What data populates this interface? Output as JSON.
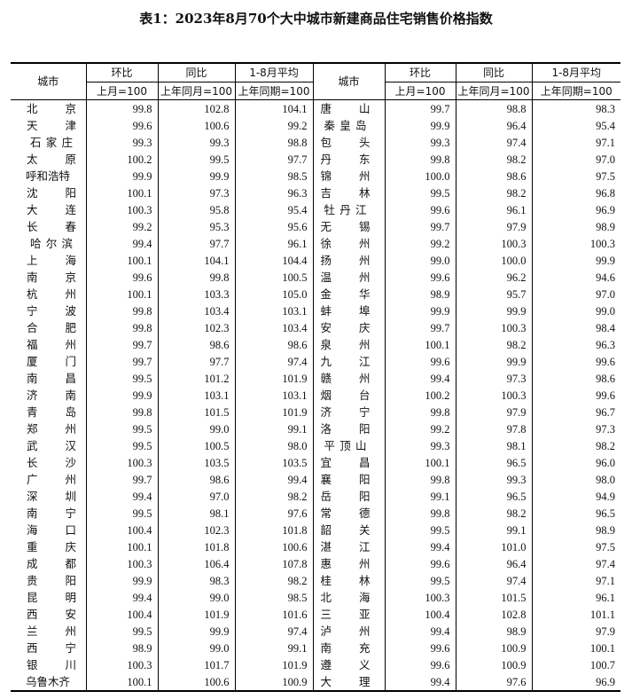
{
  "title": "表1：2023年8月70个大中城市新建商品住宅销售价格指数",
  "header": {
    "city": "城市",
    "mom": "环比",
    "yoy": "同比",
    "avg": "1-8月平均",
    "mom_base": "上月=100",
    "yoy_base": "上年同月=100",
    "avg_base": "上年同期=100"
  },
  "left_rows": [
    [
      "北京",
      "99.8",
      "102.8",
      "104.1"
    ],
    [
      "天津",
      "99.6",
      "100.6",
      "99.2"
    ],
    [
      "石家庄",
      "99.3",
      "99.3",
      "98.8"
    ],
    [
      "太原",
      "100.2",
      "99.5",
      "97.7"
    ],
    [
      "呼和浩特",
      "99.9",
      "99.9",
      "98.5"
    ],
    [
      "沈阳",
      "100.1",
      "97.3",
      "96.3"
    ],
    [
      "大连",
      "100.3",
      "95.8",
      "95.4"
    ],
    [
      "长春",
      "99.2",
      "95.3",
      "95.6"
    ],
    [
      "哈尔滨",
      "99.4",
      "97.7",
      "96.1"
    ],
    [
      "上海",
      "100.1",
      "104.1",
      "104.4"
    ],
    [
      "南京",
      "99.6",
      "99.8",
      "100.5"
    ],
    [
      "杭州",
      "100.1",
      "103.3",
      "105.0"
    ],
    [
      "宁波",
      "99.8",
      "103.4",
      "103.1"
    ],
    [
      "合肥",
      "99.8",
      "102.3",
      "103.4"
    ],
    [
      "福州",
      "99.7",
      "98.6",
      "98.6"
    ],
    [
      "厦门",
      "99.7",
      "97.7",
      "97.4"
    ],
    [
      "南昌",
      "99.5",
      "101.2",
      "101.9"
    ],
    [
      "济南",
      "99.9",
      "103.1",
      "103.1"
    ],
    [
      "青岛",
      "99.8",
      "101.5",
      "101.9"
    ],
    [
      "郑州",
      "99.5",
      "99.0",
      "99.1"
    ],
    [
      "武汉",
      "99.5",
      "100.5",
      "98.0"
    ],
    [
      "长沙",
      "100.3",
      "103.5",
      "103.5"
    ],
    [
      "广州",
      "99.7",
      "98.6",
      "99.4"
    ],
    [
      "深圳",
      "99.4",
      "97.0",
      "98.2"
    ],
    [
      "南宁",
      "99.5",
      "98.1",
      "97.6"
    ],
    [
      "海口",
      "100.4",
      "102.3",
      "101.8"
    ],
    [
      "重庆",
      "100.1",
      "101.8",
      "100.6"
    ],
    [
      "成都",
      "100.3",
      "106.4",
      "107.8"
    ],
    [
      "贵阳",
      "99.9",
      "98.3",
      "98.2"
    ],
    [
      "昆明",
      "99.4",
      "99.0",
      "98.5"
    ],
    [
      "西安",
      "100.4",
      "101.9",
      "101.6"
    ],
    [
      "兰州",
      "99.5",
      "99.9",
      "97.4"
    ],
    [
      "西宁",
      "98.9",
      "99.0",
      "99.1"
    ],
    [
      "银川",
      "100.3",
      "101.7",
      "101.9"
    ],
    [
      "乌鲁木齐",
      "100.1",
      "100.6",
      "100.9"
    ]
  ],
  "right_rows": [
    [
      "唐山",
      "99.7",
      "98.8",
      "98.3"
    ],
    [
      "秦皇岛",
      "99.9",
      "96.4",
      "95.4"
    ],
    [
      "包头",
      "99.3",
      "97.4",
      "97.1"
    ],
    [
      "丹东",
      "99.8",
      "98.2",
      "97.0"
    ],
    [
      "锦州",
      "100.0",
      "98.6",
      "97.5"
    ],
    [
      "吉林",
      "99.5",
      "98.2",
      "96.8"
    ],
    [
      "牡丹江",
      "99.6",
      "96.1",
      "96.9"
    ],
    [
      "无锡",
      "99.7",
      "97.9",
      "98.9"
    ],
    [
      "徐州",
      "99.2",
      "100.3",
      "100.3"
    ],
    [
      "扬州",
      "99.0",
      "100.0",
      "99.9"
    ],
    [
      "温州",
      "99.6",
      "96.2",
      "94.6"
    ],
    [
      "金华",
      "98.9",
      "95.7",
      "97.0"
    ],
    [
      "蚌埠",
      "99.9",
      "99.9",
      "99.0"
    ],
    [
      "安庆",
      "99.7",
      "100.3",
      "98.4"
    ],
    [
      "泉州",
      "100.1",
      "98.2",
      "96.3"
    ],
    [
      "九江",
      "99.6",
      "99.9",
      "99.6"
    ],
    [
      "赣州",
      "99.4",
      "97.3",
      "98.6"
    ],
    [
      "烟台",
      "100.2",
      "100.3",
      "99.6"
    ],
    [
      "济宁",
      "99.8",
      "97.9",
      "96.7"
    ],
    [
      "洛阳",
      "99.2",
      "97.8",
      "97.3"
    ],
    [
      "平顶山",
      "99.3",
      "98.1",
      "98.2"
    ],
    [
      "宜昌",
      "100.1",
      "96.5",
      "96.0"
    ],
    [
      "襄阳",
      "99.8",
      "99.3",
      "98.0"
    ],
    [
      "岳阳",
      "99.1",
      "96.5",
      "94.9"
    ],
    [
      "常德",
      "99.8",
      "98.2",
      "96.5"
    ],
    [
      "韶关",
      "99.5",
      "99.1",
      "98.9"
    ],
    [
      "湛江",
      "99.4",
      "101.0",
      "97.5"
    ],
    [
      "惠州",
      "99.6",
      "96.4",
      "97.4"
    ],
    [
      "桂林",
      "99.5",
      "97.4",
      "97.1"
    ],
    [
      "北海",
      "100.3",
      "101.5",
      "96.1"
    ],
    [
      "三亚",
      "100.4",
      "102.8",
      "101.1"
    ],
    [
      "泸州",
      "99.4",
      "98.9",
      "97.9"
    ],
    [
      "南充",
      "99.6",
      "100.9",
      "100.1"
    ],
    [
      "遵义",
      "99.6",
      "100.9",
      "100.7"
    ],
    [
      "大理",
      "99.4",
      "97.6",
      "96.9"
    ]
  ]
}
